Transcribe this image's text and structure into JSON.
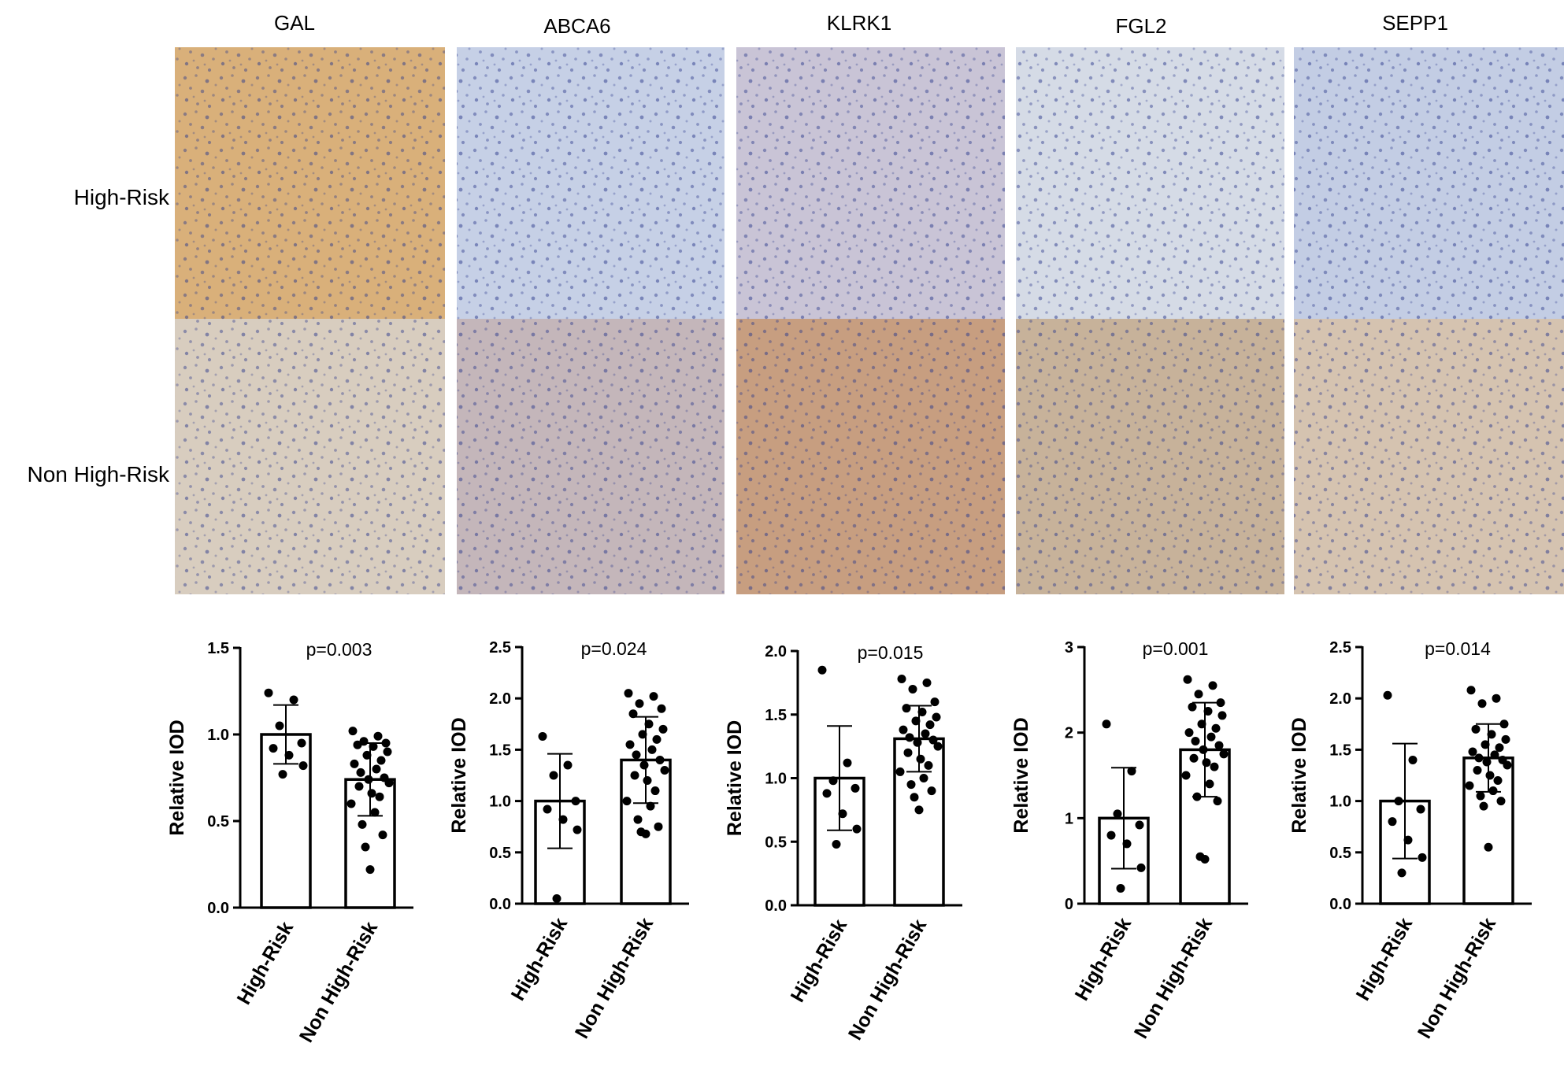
{
  "genes": [
    "GAL",
    "ABCA6",
    "KLRK1",
    "FGL2",
    "SEPP1"
  ],
  "row_labels": [
    "High-Risk",
    "Non High-Risk"
  ],
  "image_tints": {
    "High-Risk": [
      "#d9b07a",
      "#c6d0e6",
      "#c9c4d6",
      "#d5dbe6",
      "#c3cde4"
    ],
    "Non High-Risk": [
      "#d8cdbf",
      "#c4b6ba",
      "#c79e80",
      "#c7b29a",
      "#d5c3b0"
    ]
  },
  "nuclei_color": "#2c3a8c",
  "chart_data": [
    {
      "type": "bar",
      "gene": "GAL",
      "ylabel": "Relative IOD",
      "categories": [
        "High-Risk",
        "Non High-Risk"
      ],
      "ylim": [
        0,
        1.5
      ],
      "yticks": [
        "0.0",
        "0.5",
        "1.0",
        "1.5"
      ],
      "pvalue": "p=0.003",
      "series": [
        {
          "mean": 1.0,
          "sd": 0.17,
          "points": [
            1.24,
            1.2,
            1.05,
            0.95,
            0.92,
            0.88,
            0.82,
            0.77
          ]
        },
        {
          "mean": 0.74,
          "sd": 0.21,
          "points": [
            1.02,
            0.99,
            0.96,
            0.95,
            0.94,
            0.93,
            0.9,
            0.88,
            0.85,
            0.83,
            0.8,
            0.78,
            0.75,
            0.74,
            0.72,
            0.7,
            0.66,
            0.64,
            0.6,
            0.55,
            0.48,
            0.42,
            0.35,
            0.22
          ]
        }
      ]
    },
    {
      "type": "bar",
      "gene": "ABCA6",
      "ylabel": "Relative IOD",
      "categories": [
        "High-Risk",
        "Non High-Risk"
      ],
      "ylim": [
        0,
        2.5
      ],
      "yticks": [
        "0.0",
        "0.5",
        "1.0",
        "1.5",
        "2.0",
        "2.5"
      ],
      "pvalue": "p=0.024",
      "series": [
        {
          "mean": 1.0,
          "sd": 0.46,
          "points": [
            1.63,
            1.35,
            1.25,
            1.0,
            0.92,
            0.82,
            0.72,
            0.05
          ]
        },
        {
          "mean": 1.4,
          "sd": 0.42,
          "points": [
            2.05,
            2.02,
            1.95,
            1.9,
            1.85,
            1.75,
            1.7,
            1.65,
            1.6,
            1.55,
            1.5,
            1.45,
            1.4,
            1.35,
            1.3,
            1.25,
            1.2,
            1.1,
            1.0,
            0.95,
            0.82,
            0.75,
            0.7,
            0.68
          ]
        }
      ]
    },
    {
      "type": "bar",
      "gene": "KLRK1",
      "ylabel": "Relative IOD",
      "categories": [
        "High-Risk",
        "Non High-Risk"
      ],
      "ylim": [
        0,
        2.0
      ],
      "yticks": [
        "0.0",
        "0.5",
        "1.0",
        "1.5",
        "2.0"
      ],
      "pvalue": "p=0.015",
      "series": [
        {
          "mean": 1.0,
          "sd": 0.41,
          "points": [
            1.85,
            1.12,
            0.98,
            0.92,
            0.88,
            0.72,
            0.6,
            0.48
          ]
        },
        {
          "mean": 1.31,
          "sd": 0.26,
          "points": [
            1.78,
            1.75,
            1.7,
            1.6,
            1.55,
            1.52,
            1.48,
            1.45,
            1.42,
            1.38,
            1.35,
            1.32,
            1.3,
            1.28,
            1.25,
            1.2,
            1.15,
            1.1,
            1.05,
            1.0,
            0.95,
            0.9,
            0.85,
            0.75
          ]
        }
      ]
    },
    {
      "type": "bar",
      "gene": "FGL2",
      "ylabel": "Relative IOD",
      "categories": [
        "High-Risk",
        "Non High-Risk"
      ],
      "ylim": [
        0,
        3
      ],
      "yticks": [
        "0",
        "1",
        "2",
        "3"
      ],
      "pvalue": "p=0.001",
      "series": [
        {
          "mean": 1.0,
          "sd": 0.59,
          "points": [
            2.1,
            1.55,
            1.05,
            0.92,
            0.8,
            0.7,
            0.42,
            0.18
          ]
        },
        {
          "mean": 1.8,
          "sd": 0.55,
          "points": [
            2.62,
            2.55,
            2.45,
            2.35,
            2.3,
            2.25,
            2.2,
            2.1,
            2.05,
            2.0,
            1.95,
            1.9,
            1.85,
            1.8,
            1.75,
            1.7,
            1.65,
            1.6,
            1.5,
            1.4,
            1.25,
            1.2,
            0.55,
            0.52
          ]
        }
      ]
    },
    {
      "type": "bar",
      "gene": "SEPP1",
      "ylabel": "Relative IOD",
      "categories": [
        "High-Risk",
        "Non High-Risk"
      ],
      "ylim": [
        0,
        2.5
      ],
      "yticks": [
        "0.0",
        "0.5",
        "1.0",
        "1.5",
        "2.0",
        "2.5"
      ],
      "pvalue": "p=0.014",
      "series": [
        {
          "mean": 1.0,
          "sd": 0.56,
          "points": [
            2.03,
            1.4,
            1.0,
            0.92,
            0.8,
            0.62,
            0.45,
            0.3
          ]
        },
        {
          "mean": 1.42,
          "sd": 0.33,
          "points": [
            2.08,
            2.0,
            1.95,
            1.75,
            1.7,
            1.65,
            1.6,
            1.55,
            1.52,
            1.48,
            1.45,
            1.42,
            1.4,
            1.38,
            1.35,
            1.3,
            1.25,
            1.2,
            1.15,
            1.1,
            1.05,
            1.0,
            0.95,
            0.55
          ]
        }
      ]
    }
  ]
}
